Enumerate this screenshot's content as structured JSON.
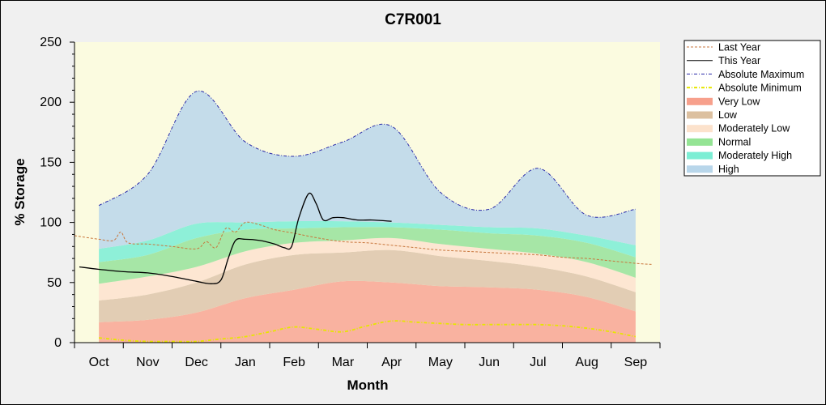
{
  "chart_data": {
    "type": "area",
    "title": "C7R001",
    "xlabel": "Month",
    "ylabel": "% Storage",
    "ylim": [
      0,
      250
    ],
    "yticks": [
      0,
      50,
      100,
      150,
      200,
      250
    ],
    "categories": [
      "Oct",
      "Nov",
      "Dec",
      "Jan",
      "Feb",
      "Mar",
      "Apr",
      "May",
      "Jun",
      "Jul",
      "Aug",
      "Sep"
    ],
    "grid": false,
    "legend_position": "top-right outside",
    "x_domain": [
      -0.5,
      11.5
    ],
    "bands": {
      "x": [
        0,
        1,
        2,
        3,
        4,
        5,
        6,
        7,
        8,
        9,
        10,
        11
      ],
      "very_low_top": [
        17,
        19,
        25,
        37,
        44,
        51,
        50,
        47,
        46,
        44,
        38,
        26
      ],
      "low_top": [
        35,
        40,
        50,
        65,
        73,
        75,
        77,
        72,
        68,
        63,
        55,
        42
      ],
      "moderately_low_top": [
        49,
        55,
        63,
        76,
        83,
        85,
        87,
        82,
        78,
        74,
        67,
        54
      ],
      "normal_top": [
        67,
        73,
        87,
        94,
        95,
        96,
        96,
        94,
        91,
        89,
        83,
        71
      ],
      "moderately_high_top": [
        78,
        85,
        99,
        100,
        101,
        101,
        100,
        98,
        96,
        95,
        89,
        81
      ],
      "high_top": [
        114,
        140,
        209,
        167,
        155,
        167,
        180,
        125,
        111,
        145,
        106,
        111
      ]
    },
    "series": [
      {
        "name": "Last Year",
        "x": [
          -0.5,
          0,
          0.3,
          0.45,
          0.6,
          1.0,
          1.5,
          2.0,
          2.2,
          2.4,
          2.6,
          2.8,
          3.0,
          3.3,
          3.6,
          4.0,
          4.5,
          5.0,
          5.5,
          6.0,
          6.5,
          7.0,
          7.5,
          8.0,
          8.5,
          9.0,
          9.5,
          10.0,
          10.5,
          11.0,
          11.35
        ],
        "y": [
          89,
          86,
          85,
          92,
          83,
          82,
          80,
          78,
          84,
          79,
          95,
          92,
          100,
          98,
          94,
          91,
          87,
          84,
          83,
          81,
          79,
          77,
          76,
          75,
          74,
          73,
          71,
          70,
          68,
          66,
          65
        ]
      },
      {
        "name": "This Year",
        "x": [
          -0.4,
          0,
          0.5,
          1.0,
          1.5,
          2.0,
          2.3,
          2.5,
          2.65,
          2.8,
          3.0,
          3.3,
          3.6,
          3.8,
          3.95,
          4.1,
          4.3,
          4.45,
          4.6,
          4.8,
          5.0,
          5.3,
          5.6,
          6.0
        ],
        "y": [
          63,
          61,
          59,
          58,
          55,
          51,
          49,
          52,
          70,
          85,
          86,
          85,
          82,
          79,
          80,
          104,
          124,
          116,
          102,
          104,
          104,
          102,
          102,
          101
        ]
      },
      {
        "name": "Absolute Maximum",
        "x": [
          0,
          1,
          2,
          3,
          4,
          5,
          6,
          7,
          8,
          9,
          10,
          11
        ],
        "y": [
          114,
          140,
          209,
          167,
          155,
          167,
          180,
          125,
          111,
          145,
          106,
          111
        ]
      },
      {
        "name": "Absolute Minimum",
        "x": [
          0,
          0.5,
          1,
          1.5,
          2,
          2.5,
          3,
          3.5,
          4,
          4.5,
          5,
          5.5,
          6,
          6.5,
          7,
          7.5,
          8,
          8.5,
          9,
          9.5,
          10,
          10.5,
          11
        ],
        "y": [
          4,
          2,
          1,
          1,
          1,
          3,
          5,
          9,
          13,
          11,
          9,
          14,
          18,
          17,
          16,
          15,
          15,
          15,
          15,
          14,
          12,
          9,
          5
        ]
      }
    ],
    "legend": [
      {
        "label": "Last Year",
        "kind": "line",
        "color": "#c8763c",
        "dash": "3,2"
      },
      {
        "label": "This Year",
        "kind": "line",
        "color": "#000000",
        "dash": ""
      },
      {
        "label": "Absolute Maximum",
        "kind": "line",
        "color": "#2a2aa8",
        "dash": "4,2,1,2"
      },
      {
        "label": "Absolute Minimum",
        "kind": "line",
        "color": "#e6e600",
        "dash": "4,2,1,2"
      },
      {
        "label": "Very Low",
        "kind": "fill",
        "color": "#f7a08c"
      },
      {
        "label": "Low",
        "kind": "fill",
        "color": "#dcc0a0"
      },
      {
        "label": "Moderately Low",
        "kind": "fill",
        "color": "#fce2cc"
      },
      {
        "label": "Normal",
        "kind": "fill",
        "color": "#94e494"
      },
      {
        "label": "Moderately High",
        "kind": "fill",
        "color": "#7ceed4"
      },
      {
        "label": "High",
        "kind": "fill",
        "color": "#b8d6ea"
      }
    ],
    "colors": {
      "plot_background": "#fbfbe0",
      "very_low": "#f9b2a0",
      "low": "#e2cdb4",
      "moderately_low": "#fde6d2",
      "normal": "#a6e6a6",
      "moderately_high": "#8ef0d8",
      "high": "#c4dcea"
    }
  }
}
